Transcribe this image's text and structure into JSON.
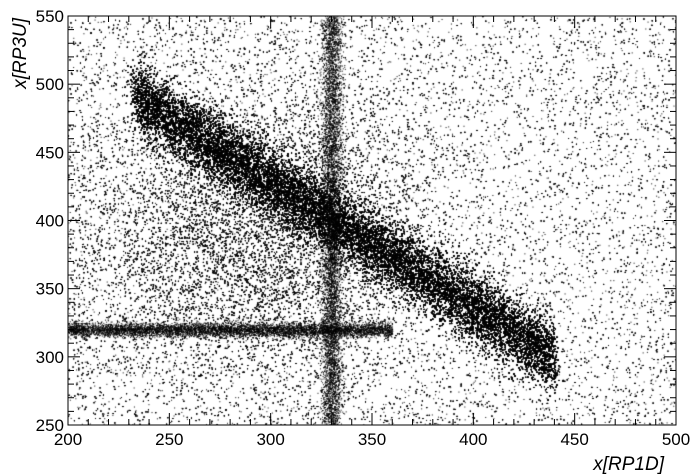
{
  "chart_data": {
    "type": "scatter",
    "title": "",
    "xlabel": "x[RP1D]",
    "ylabel": "x[RP3U]",
    "xlim": [
      200,
      500
    ],
    "ylim": [
      250,
      550
    ],
    "xticks": [
      200,
      250,
      300,
      350,
      400,
      450,
      500
    ],
    "yticks": [
      250,
      300,
      350,
      400,
      450,
      500,
      550
    ],
    "grid": false,
    "legend": "none",
    "marker_color": "#000000",
    "features": [
      {
        "name": "diagonal band",
        "x_range": [
          233,
          440
        ],
        "y_from": 490,
        "y_to": 300,
        "width_y": 28
      },
      {
        "name": "horizontal line",
        "y": 320,
        "x_range": [
          200,
          360
        ]
      },
      {
        "name": "vertical line",
        "x": 330,
        "y_range": [
          250,
          550
        ]
      },
      {
        "name": "uniform background",
        "x_range": [
          200,
          500
        ],
        "y_range": [
          250,
          550
        ]
      }
    ]
  }
}
